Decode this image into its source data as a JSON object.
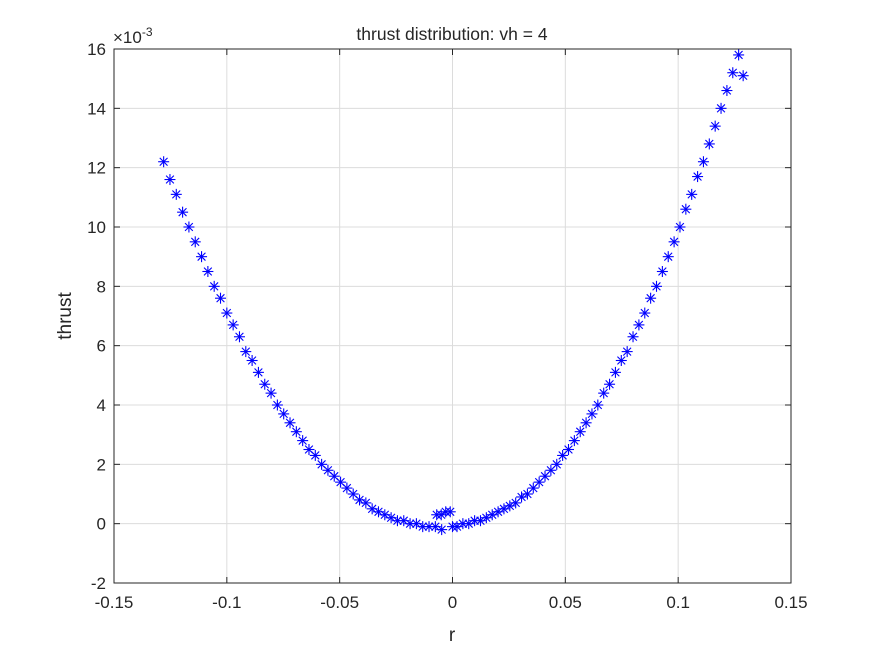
{
  "chart_data": {
    "type": "scatter",
    "title": "thrust distribution: vh = 4",
    "xlabel": "r",
    "ylabel": "thrust",
    "exponent_base": "×10",
    "exponent_power": "-3",
    "xlim": [
      -0.15,
      0.15
    ],
    "ylim": [
      -0.002,
      0.016
    ],
    "xticks": [
      -0.15,
      -0.1,
      -0.05,
      0,
      0.05,
      0.1,
      0.15
    ],
    "xtick_labels": [
      "-0.15",
      "-0.1",
      "-0.05",
      "0",
      "0.05",
      "0.1",
      "0.15"
    ],
    "yticks": [
      -0.002,
      0,
      0.002,
      0.004,
      0.006,
      0.008,
      0.01,
      0.012,
      0.014,
      0.016
    ],
    "ytick_labels": [
      "-2",
      "0",
      "2",
      "4",
      "6",
      "8",
      "10",
      "12",
      "14",
      "16"
    ],
    "grid": true,
    "marker": "asterisk",
    "marker_color": "#0000ff",
    "series": [
      {
        "x": [
          -0.128,
          -0.1252,
          -0.1224,
          -0.1196,
          -0.1168,
          -0.114,
          -0.1112,
          -0.1084,
          -0.1056,
          -0.1028,
          -0.1,
          -0.0972,
          -0.0944,
          -0.0916,
          -0.0888,
          -0.086,
          -0.0832,
          -0.0804,
          -0.0776,
          -0.0748,
          -0.072,
          -0.0692,
          -0.0664,
          -0.0636,
          -0.0608,
          -0.058,
          -0.0552,
          -0.0524,
          -0.0496,
          -0.0468,
          -0.044,
          -0.0412,
          -0.0384,
          -0.0356,
          -0.0328,
          -0.03,
          -0.0272,
          -0.0244,
          -0.0216,
          -0.0188,
          -0.016,
          -0.0132,
          -0.0104,
          -0.0076,
          -0.0048,
          -0.007,
          -0.005,
          -0.003,
          -0.001,
          0,
          0.002,
          0.0046,
          0.0072,
          0.0098,
          0.0124,
          0.015,
          0.0176,
          0.0202,
          0.0228,
          0.0254,
          0.028,
          0.0306,
          0.0332,
          0.0358,
          0.0384,
          0.041,
          0.0436,
          0.0462,
          0.0488,
          0.0514,
          0.054,
          0.0566,
          0.0592,
          0.0618,
          0.0644,
          0.067,
          0.0696,
          0.0722,
          0.0748,
          0.0774,
          0.08,
          0.0826,
          0.0852,
          0.0878,
          0.0904,
          0.093,
          0.0956,
          0.0982,
          0.1008,
          0.1034,
          0.106,
          0.1086,
          0.1112,
          0.1138,
          0.1164,
          0.119,
          0.1216,
          0.1242,
          0.1268,
          0.1288
        ],
        "y": [
          0.0122,
          0.0116,
          0.0111,
          0.0105,
          0.01,
          0.0095,
          0.009,
          0.0085,
          0.008,
          0.0076,
          0.0071,
          0.0067,
          0.0063,
          0.0058,
          0.0055,
          0.0051,
          0.0047,
          0.0044,
          0.004,
          0.0037,
          0.0034,
          0.0031,
          0.0028,
          0.0025,
          0.0023,
          0.002,
          0.0018,
          0.0016,
          0.0014,
          0.0012,
          0.001,
          0.0008,
          0.0007,
          0.0005,
          0.0004,
          0.0003,
          0.0002,
          0.0001,
          0.0001,
          0.0,
          0.0,
          -0.0001,
          -0.0001,
          -0.0001,
          -0.0002,
          0.0003,
          0.0003,
          0.0004,
          0.0004,
          -0.0001,
          -0.0001,
          0.0,
          0.0,
          0.0001,
          0.0001,
          0.0002,
          0.0003,
          0.0004,
          0.0005,
          0.0006,
          0.0007,
          0.0009,
          0.001,
          0.0012,
          0.0014,
          0.0016,
          0.0018,
          0.002,
          0.0023,
          0.0025,
          0.0028,
          0.0031,
          0.0034,
          0.0037,
          0.004,
          0.0044,
          0.0047,
          0.0051,
          0.0055,
          0.0058,
          0.0063,
          0.0067,
          0.0071,
          0.0076,
          0.008,
          0.0085,
          0.009,
          0.0095,
          0.01,
          0.0106,
          0.0111,
          0.0117,
          0.0122,
          0.0128,
          0.0134,
          0.014,
          0.0146,
          0.0152,
          0.0158,
          0.0151
        ]
      }
    ]
  }
}
